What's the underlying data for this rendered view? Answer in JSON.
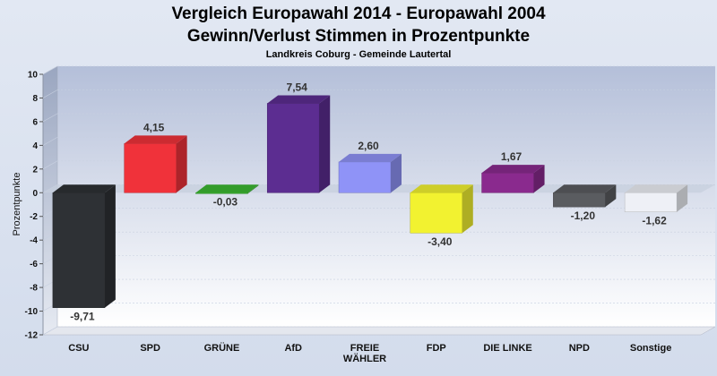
{
  "chart_data": {
    "type": "bar",
    "title": "Vergleich Europawahl 2014 - Europawahl 2004",
    "subtitle_main": "Gewinn/Verlust Stimmen in Prozentpunkte",
    "subtitle": "Landkreis Coburg - Gemeinde Lautertal",
    "xlabel": "",
    "ylabel": "Prozentpunkte",
    "ylim": [
      -12,
      10
    ],
    "yticks": [
      10,
      8,
      6,
      4,
      2,
      0,
      -2,
      -4,
      -6,
      -8,
      -10,
      -12
    ],
    "grid": true,
    "categories": [
      "CSU",
      "SPD",
      "GRÜNE",
      "AfD",
      "FREIE\nWÄHLER",
      "FDP",
      "DIE LINKE",
      "NPD",
      "Sonstige"
    ],
    "values": [
      -9.71,
      4.15,
      -0.03,
      7.54,
      2.6,
      -3.4,
      1.67,
      -1.2,
      -1.62
    ],
    "value_labels": [
      "-9,71",
      "4,15",
      "-0,03",
      "7,54",
      "2,60",
      "-3,40",
      "1,67",
      "-1,20",
      "-1,62"
    ],
    "colors": [
      "#2e3135",
      "#f0323a",
      "#3cb832",
      "#5c2d91",
      "#8f93f7",
      "#f2f230",
      "#8a2a8e",
      "#5a5c60",
      "#eef0f6"
    ]
  }
}
